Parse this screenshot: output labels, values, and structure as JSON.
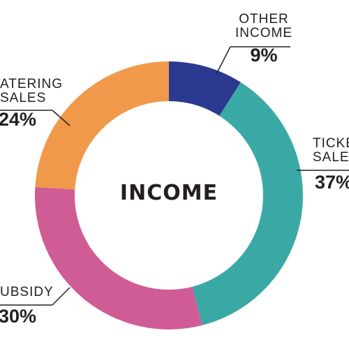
{
  "chart_data": {
    "type": "pie",
    "title": "INCOME",
    "categories": [
      [
        "OTHER",
        "INCOME"
      ],
      [
        "TICKE",
        "SALE"
      ],
      [
        "UBSIDY"
      ],
      [
        "ATERING",
        "SALES"
      ]
    ],
    "values": [
      9,
      37,
      30,
      24
    ],
    "value_labels": [
      "9%",
      "37%",
      "30%",
      "24%"
    ],
    "colors": [
      "#2b3990",
      "#3aa9a5",
      "#d05c96",
      "#f0994a"
    ]
  }
}
